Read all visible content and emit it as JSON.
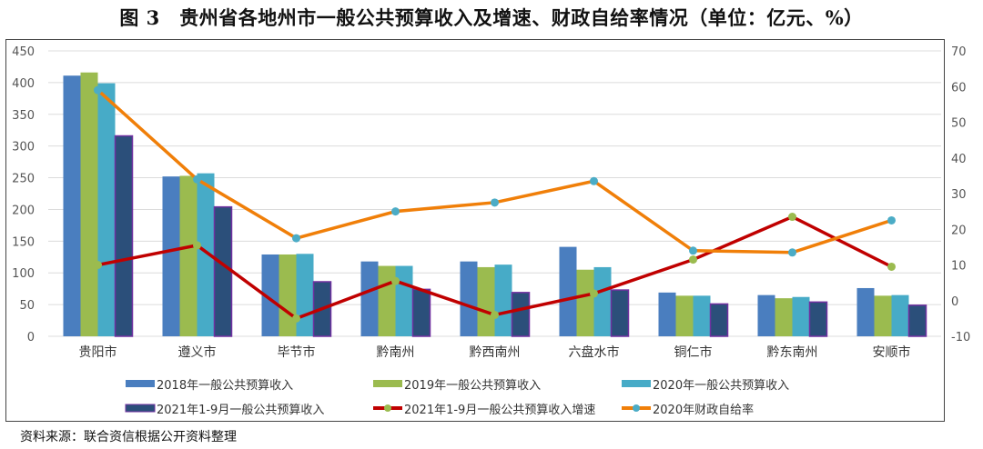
{
  "title": "图 3　贵州省各地州市一般公共预算收入及增速、财政自给率情况（单位：亿元、%）",
  "source": "资料来源：联合资信根据公开资料整理",
  "chart_data": {
    "type": "bar",
    "categories": [
      "贵阳市",
      "遵义市",
      "毕节市",
      "黔南州",
      "黔西南州",
      "六盘水市",
      "铜仁市",
      "黔东南州",
      "安顺市"
    ],
    "y_left": {
      "range": [
        0,
        450
      ],
      "ticks": [
        0,
        50,
        100,
        150,
        200,
        250,
        300,
        350,
        400,
        450
      ]
    },
    "y_right": {
      "range": [
        -10,
        70
      ],
      "ticks": [
        -10,
        0,
        10,
        20,
        30,
        40,
        50,
        60,
        70
      ]
    },
    "grid": true,
    "legend_position": "bottom",
    "series": [
      {
        "name": "2018年一般公共预算收入",
        "type": "bar",
        "axis": "left",
        "color": "#4a7ebf",
        "values": [
          411,
          252,
          129,
          118,
          118,
          141,
          69,
          65,
          76
        ]
      },
      {
        "name": "2019年一般公共预算收入",
        "type": "bar",
        "axis": "left",
        "color": "#9bbb4f",
        "values": [
          416,
          253,
          129,
          111,
          109,
          105,
          64,
          60,
          64
        ]
      },
      {
        "name": "2020年一般公共预算收入",
        "type": "bar",
        "axis": "left",
        "color": "#47abc7",
        "values": [
          399,
          257,
          130,
          111,
          113,
          109,
          64,
          62,
          65
        ]
      },
      {
        "name": "2021年1-9月一般公共预算收入",
        "type": "bar",
        "axis": "left",
        "color": "#2b4f7a",
        "border": "#7030a0",
        "values": [
          316,
          204,
          86,
          74,
          69,
          73,
          51,
          54,
          49
        ]
      },
      {
        "name": "2021年1-9月一般公共预算收入增速",
        "type": "line",
        "axis": "right",
        "color": "#c00000",
        "marker": "#9bbb4f",
        "values": [
          10,
          15.5,
          -5,
          5.5,
          -4,
          2,
          11.5,
          23.5,
          9.5
        ]
      },
      {
        "name": "2020年财政自给率",
        "type": "line",
        "axis": "right",
        "color": "#f07f09",
        "marker": "#4bacc6",
        "values": [
          59,
          34,
          17.5,
          25,
          27.5,
          33.5,
          14,
          13.5,
          22.5
        ]
      }
    ]
  }
}
